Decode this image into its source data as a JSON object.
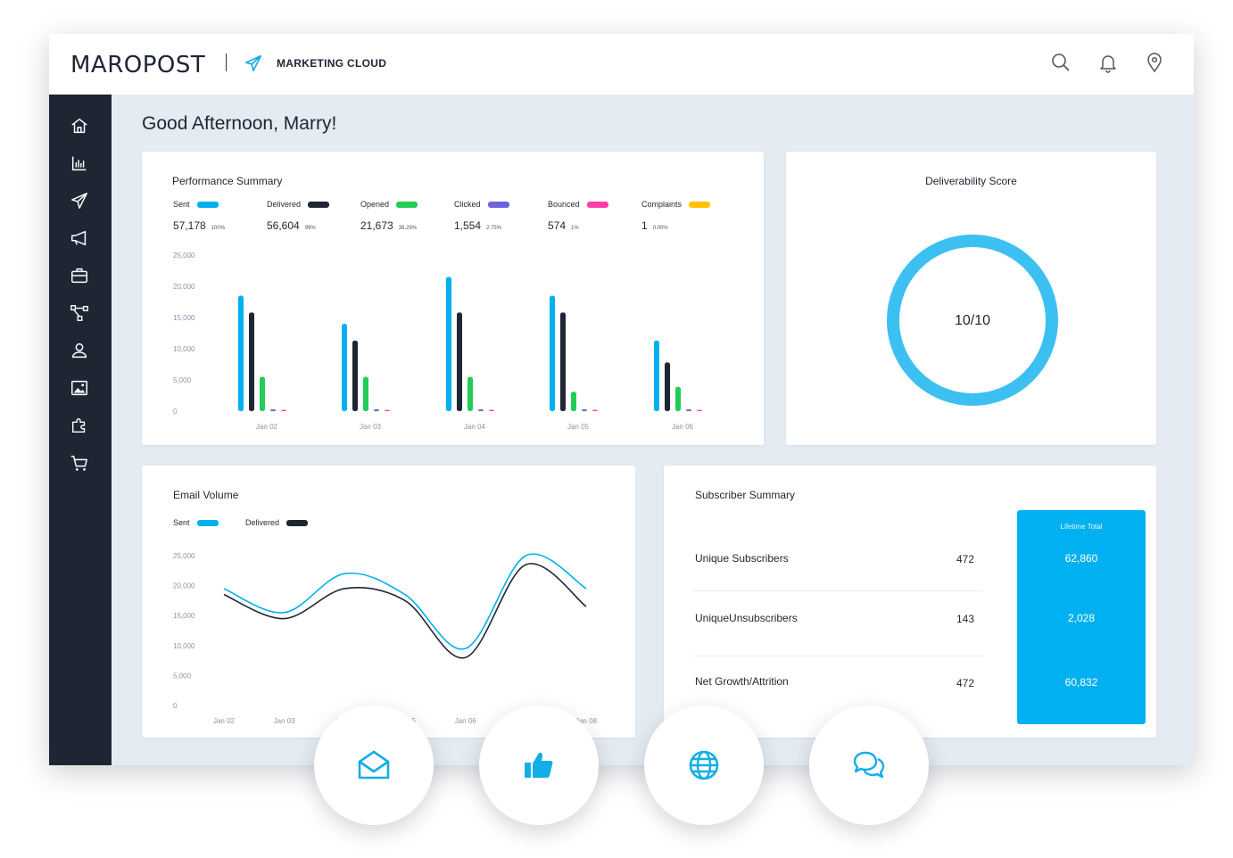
{
  "header": {
    "logo": "MAROPOST",
    "product": "MARKETING CLOUD"
  },
  "icons": {
    "top": [
      "search-icon",
      "bell-icon",
      "location-pin-icon"
    ],
    "sidebar": [
      "home-icon",
      "bar-chart-icon",
      "send-icon",
      "megaphone-icon",
      "briefcase-icon",
      "workflow-icon",
      "user-icon",
      "image-icon",
      "puzzle-icon",
      "cart-icon"
    ],
    "floating": [
      "open-envelope-icon",
      "thumbs-up-icon",
      "globe-icon",
      "chat-bubbles-icon"
    ]
  },
  "colors": {
    "accent": "#00b0f0",
    "sent": "#00b0f0",
    "delivered": "#1f2633",
    "opened": "#22cc55",
    "clicked": "#6a64d8",
    "bounced": "#ff3ea5",
    "complaints": "#ffc200",
    "sidebar": "#1f2633"
  },
  "greeting": "Good Afternoon, Marry!",
  "performance": {
    "title": "Performance Summary",
    "metrics": [
      {
        "label": "Sent",
        "value": "57,178",
        "pct": "100%",
        "color": "#00b0f0"
      },
      {
        "label": "Delivered",
        "value": "56,604",
        "pct": "99%",
        "color": "#1f2633"
      },
      {
        "label": "Opened",
        "value": "21,673",
        "pct": "38.29%",
        "color": "#22cc55"
      },
      {
        "label": "Clicked",
        "value": "1,554",
        "pct": "2.75%",
        "color": "#6a64d8"
      },
      {
        "label": "Bounced",
        "value": "574",
        "pct": "1%",
        "color": "#ff3ea5"
      },
      {
        "label": "Complaints",
        "value": "1",
        "pct": "0.00%",
        "color": "#ffc200"
      }
    ]
  },
  "deliverability": {
    "title": "Deliverability Score",
    "score_text": "10/10",
    "score_fraction": 1.0
  },
  "email_volume": {
    "title": "Email Volume",
    "legend": [
      {
        "label": "Sent",
        "color": "#00b0f0"
      },
      {
        "label": "Delivered",
        "color": "#1f2633"
      }
    ]
  },
  "subscriber_summary": {
    "title": "Subscriber Summary",
    "rows": [
      {
        "label": "Unique Subscribers",
        "value": "472"
      },
      {
        "label": "UniqueUnsubscribers",
        "value": "143"
      },
      {
        "label": "Net Growth/Attrition",
        "value": "472"
      }
    ],
    "lifetime_title": "Lifetime Total",
    "lifetime_values": [
      "62,860",
      "2,028",
      "60,832"
    ]
  },
  "chart_data": [
    {
      "type": "bar",
      "title": "Performance Summary",
      "categories": [
        "Jan 02",
        "Jan 03",
        "Jan 04",
        "Jan 05",
        "Jan 06"
      ],
      "yticks": [
        "25,000",
        "20,000",
        "15,000",
        "10,000",
        "5,000",
        "0"
      ],
      "ylim": [
        0,
        25000
      ],
      "grid": false,
      "series": [
        {
          "name": "Sent",
          "color": "#00b0f0",
          "values": [
            18500,
            14000,
            21500,
            18500,
            11300
          ]
        },
        {
          "name": "Delivered",
          "color": "#1f2633",
          "values": [
            15800,
            11300,
            15800,
            15800,
            7800
          ]
        },
        {
          "name": "Opened",
          "color": "#22cc55",
          "values": [
            5500,
            5500,
            5500,
            3100,
            3900
          ]
        },
        {
          "name": "Clicked",
          "color": "#6a64d8",
          "values": [
            300,
            300,
            300,
            300,
            300
          ]
        },
        {
          "name": "Bounced",
          "color": "#ff3ea5",
          "values": [
            100,
            100,
            100,
            100,
            100
          ]
        }
      ]
    },
    {
      "type": "line",
      "title": "Email Volume",
      "x": [
        "Jan 02",
        "Jan 03",
        "Jan 04",
        "Jan 05",
        "Jan 06",
        "Jan 07",
        "Jan 08"
      ],
      "x_tick_labels": [
        "Jan 02",
        "Jan 03",
        "Jan 04",
        "Jan 05",
        "Jan 06",
        "Jan 07",
        "Jan 08"
      ],
      "yticks": [
        "25,000",
        "20,000",
        "15,000",
        "10,000",
        "5,000",
        "0"
      ],
      "ylim": [
        0,
        25000
      ],
      "grid": false,
      "series": [
        {
          "name": "Sent",
          "color": "#00b0f0",
          "values": [
            19500,
            15500,
            22000,
            18500,
            9500,
            25000,
            19500
          ]
        },
        {
          "name": "Delivered",
          "color": "#1f2633",
          "values": [
            18500,
            14500,
            19500,
            17500,
            8000,
            23500,
            16500
          ]
        }
      ]
    }
  ]
}
